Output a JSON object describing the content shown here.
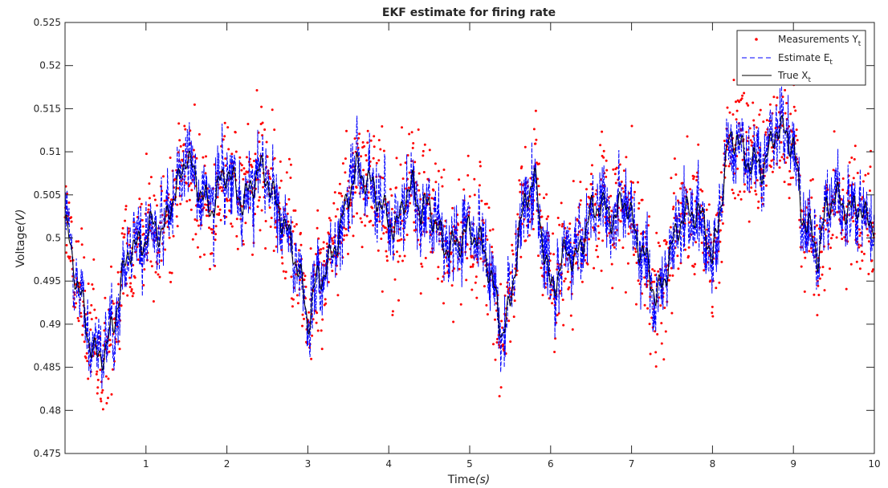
{
  "chart_data": {
    "type": "line",
    "title": "EKF estimate for firing rate",
    "xlabel": "Time",
    "xlabel_unit": "(s)",
    "ylabel": "Voltage",
    "ylabel_unit": "(V)",
    "xlim": [
      0,
      10
    ],
    "ylim": [
      0.475,
      0.525
    ],
    "x_ticks": [
      1,
      2,
      3,
      4,
      5,
      6,
      7,
      8,
      9,
      10
    ],
    "y_ticks": [
      0.475,
      0.48,
      0.485,
      0.49,
      0.495,
      0.5,
      0.505,
      0.51,
      0.515,
      0.52,
      0.525
    ],
    "x_tick_labels": [
      "1",
      "2",
      "3",
      "4",
      "5",
      "6",
      "7",
      "8",
      "9",
      "10"
    ],
    "y_tick_labels": [
      "0.475",
      "0.48",
      "0.485",
      "0.49",
      "0.495",
      "0.5",
      "0.505",
      "0.51",
      "0.515",
      "0.52",
      "0.525"
    ],
    "grid": false,
    "legend_position": "top-right",
    "series": [
      {
        "name": "Measurements Y",
        "name_sub": "t",
        "style": "scatter",
        "color": "#ff0000"
      },
      {
        "name": "Estimate E",
        "name_sub": "t",
        "style": "dashed",
        "color": "#0000ff"
      },
      {
        "name": "True X",
        "name_sub": "t",
        "style": "solid",
        "color": "#000000"
      }
    ],
    "true_x_time": [
      0,
      0.1,
      0.2,
      0.3,
      0.4,
      0.5,
      0.6,
      0.7,
      0.8,
      0.9,
      1.0,
      1.1,
      1.2,
      1.3,
      1.4,
      1.5,
      1.6,
      1.7,
      1.8,
      1.9,
      2.0,
      2.1,
      2.2,
      2.3,
      2.4,
      2.5,
      2.6,
      2.7,
      2.8,
      2.9,
      3.0,
      3.1,
      3.2,
      3.3,
      3.4,
      3.5,
      3.6,
      3.7,
      3.8,
      3.9,
      4.0,
      4.1,
      4.2,
      4.3,
      4.4,
      4.5,
      4.6,
      4.7,
      4.8,
      4.9,
      5.0,
      5.1,
      5.2,
      5.3,
      5.4,
      5.5,
      5.6,
      5.7,
      5.8,
      5.9,
      6.0,
      6.1,
      6.2,
      6.3,
      6.4,
      6.5,
      6.6,
      6.7,
      6.8,
      6.9,
      7.0,
      7.1,
      7.2,
      7.3,
      7.4,
      7.5,
      7.6,
      7.7,
      7.8,
      7.9,
      8.0,
      8.1,
      8.2,
      8.3,
      8.4,
      8.5,
      8.6,
      8.7,
      8.8,
      8.9,
      9.0,
      9.1,
      9.2,
      9.3,
      9.4,
      9.5,
      9.6,
      9.7,
      9.8,
      9.9,
      10.0
    ],
    "true_x_values": [
      0.502,
      0.497,
      0.493,
      0.488,
      0.486,
      0.487,
      0.49,
      0.495,
      0.499,
      0.499,
      0.5,
      0.502,
      0.5,
      0.504,
      0.506,
      0.51,
      0.507,
      0.505,
      0.503,
      0.506,
      0.508,
      0.506,
      0.504,
      0.506,
      0.508,
      0.507,
      0.504,
      0.502,
      0.499,
      0.496,
      0.49,
      0.495,
      0.496,
      0.498,
      0.501,
      0.505,
      0.508,
      0.507,
      0.506,
      0.504,
      0.502,
      0.501,
      0.505,
      0.506,
      0.503,
      0.504,
      0.501,
      0.499,
      0.499,
      0.5,
      0.501,
      0.5,
      0.498,
      0.494,
      0.489,
      0.492,
      0.5,
      0.505,
      0.507,
      0.5,
      0.494,
      0.496,
      0.499,
      0.497,
      0.5,
      0.503,
      0.504,
      0.503,
      0.502,
      0.505,
      0.502,
      0.499,
      0.497,
      0.493,
      0.495,
      0.499,
      0.502,
      0.503,
      0.503,
      0.502,
      0.497,
      0.504,
      0.511,
      0.512,
      0.509,
      0.509,
      0.508,
      0.51,
      0.513,
      0.512,
      0.511,
      0.503,
      0.501,
      0.498,
      0.503,
      0.505,
      0.504,
      0.503,
      0.504,
      0.502,
      0.502
    ]
  }
}
